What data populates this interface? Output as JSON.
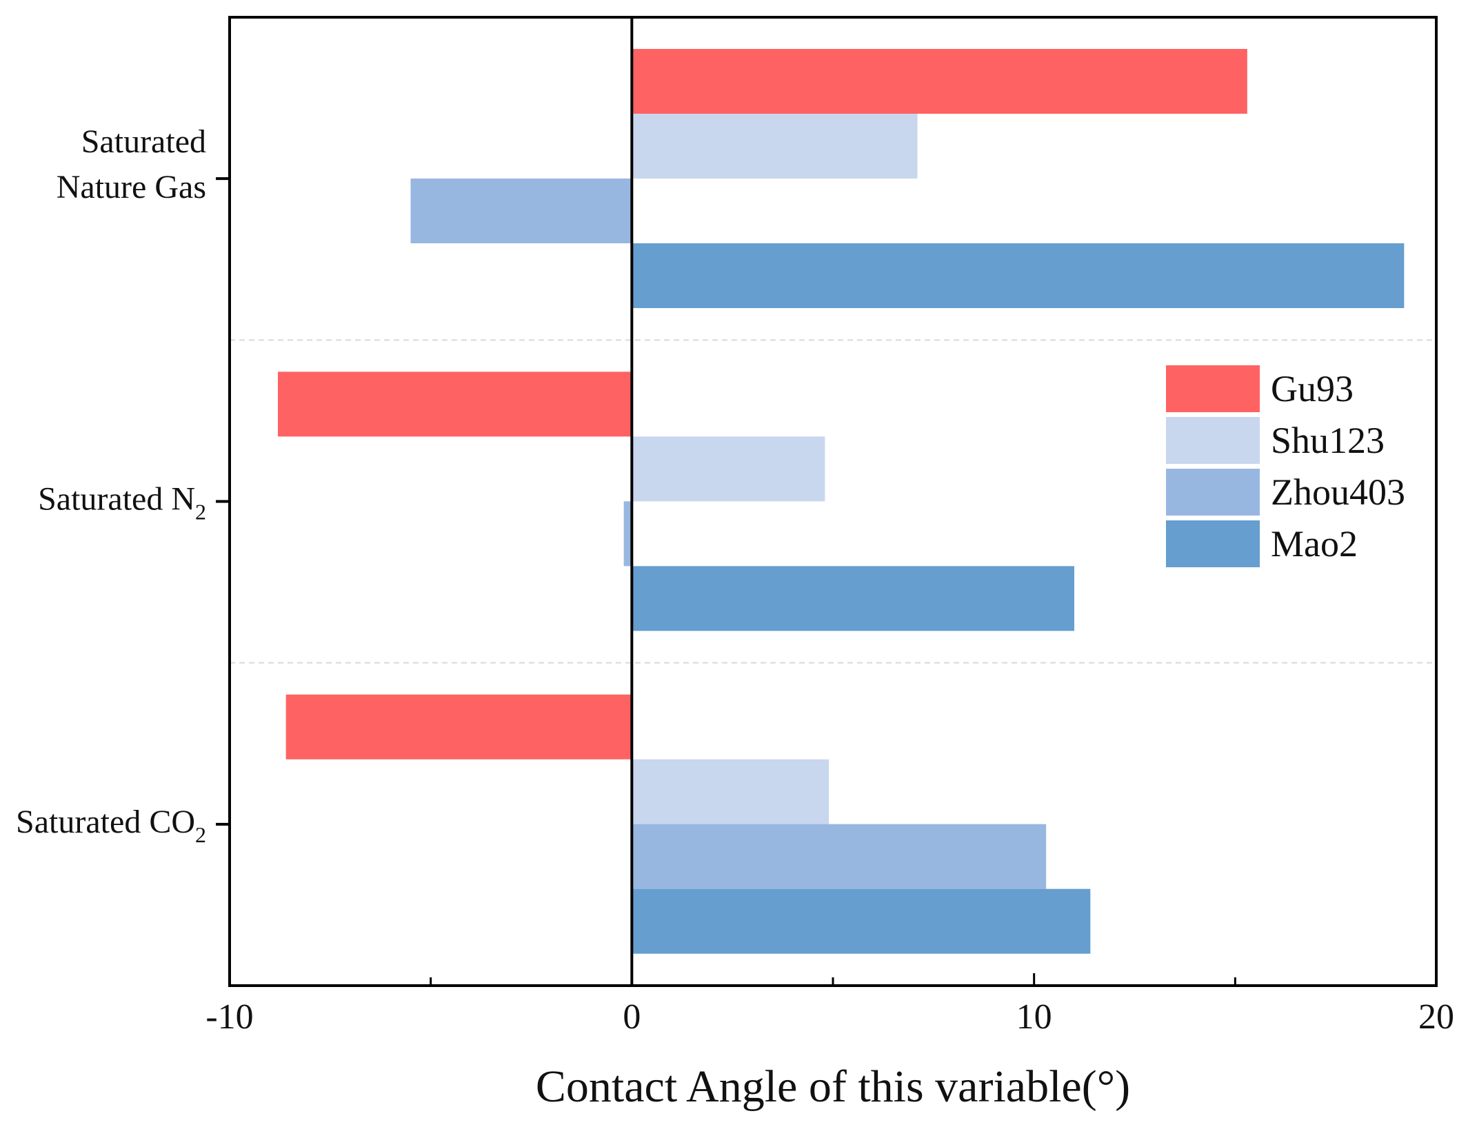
{
  "chart_data": {
    "type": "bar",
    "orientation": "horizontal",
    "xlabel": "Contact Angle of this variable(°)",
    "xlim": [
      -10,
      20
    ],
    "xticks": [
      -10,
      0,
      10,
      20
    ],
    "xtick_labels": [
      "-10",
      "0",
      "10",
      "20"
    ],
    "categories": [
      {
        "line1": "Saturated",
        "line2": "Nature Gas",
        "base": "",
        "sub": ""
      },
      {
        "line1": "",
        "line2": "",
        "base": "Saturated N",
        "sub": "2"
      },
      {
        "line1": "",
        "line2": "",
        "base": "Saturated CO",
        "sub": "2"
      }
    ],
    "series": [
      {
        "name": "Gu93",
        "color": "#ff6262",
        "values": [
          15.3,
          -8.8,
          -8.6
        ]
      },
      {
        "name": "Shu123",
        "color": "#c8d6ee",
        "values": [
          7.1,
          4.8,
          4.9
        ]
      },
      {
        "name": "Zhou403",
        "color": "#98b7e0",
        "values": [
          -5.5,
          -0.2,
          10.3
        ]
      },
      {
        "name": "Mao2",
        "color": "#659ecf",
        "values": [
          19.2,
          11.0,
          11.4
        ]
      }
    ],
    "legend_position": "right-middle",
    "grid": false
  }
}
